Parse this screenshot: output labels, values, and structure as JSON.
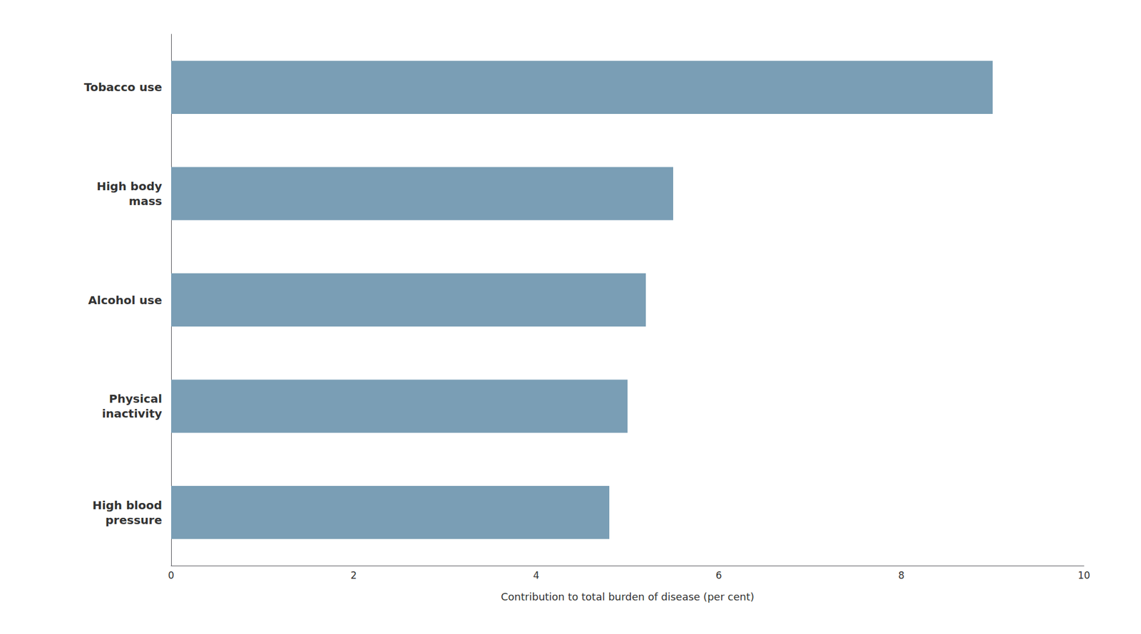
{
  "chart_data": {
    "type": "bar",
    "orientation": "horizontal",
    "categories": [
      "High blood\npressure",
      "Physical\ninactivity",
      "Alcohol use",
      "High body\nmass",
      "Tobacco use"
    ],
    "values": [
      4.8,
      5.0,
      5.2,
      5.5,
      9.0
    ],
    "color": "#7a9eb5",
    "xlabel": "Contribution to total burden of disease (per cent)",
    "xlim": [
      0,
      10
    ],
    "xticks": [
      0,
      2,
      4,
      6,
      8,
      10
    ],
    "grid": false
  }
}
